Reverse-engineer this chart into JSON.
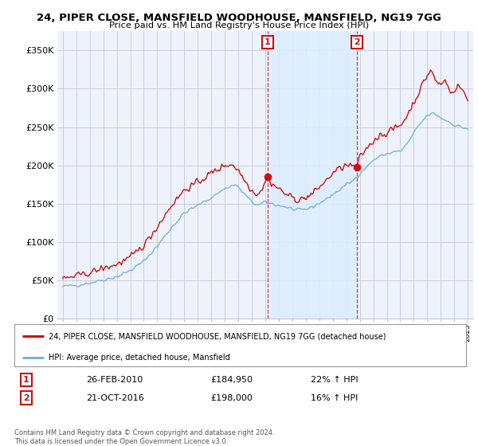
{
  "title": "24, PIPER CLOSE, MANSFIELD WOODHOUSE, MANSFIELD, NG19 7GG",
  "subtitle": "Price paid vs. HM Land Registry's House Price Index (HPI)",
  "legend_line1": "24, PIPER CLOSE, MANSFIELD WOODHOUSE, MANSFIELD, NG19 7GG (detached house)",
  "legend_line2": "HPI: Average price, detached house, Mansfield",
  "annotation1_date": "26-FEB-2010",
  "annotation1_price": "£184,950",
  "annotation1_hpi": "22% ↑ HPI",
  "annotation2_date": "21-OCT-2016",
  "annotation2_price": "£198,000",
  "annotation2_hpi": "16% ↑ HPI",
  "footer": "Contains HM Land Registry data © Crown copyright and database right 2024.\nThis data is licensed under the Open Government Licence v3.0.",
  "sale1_x": 2010.15,
  "sale1_y": 184950,
  "sale2_x": 2016.8,
  "sale2_y": 198000,
  "hpi_color": "#7ab4d8",
  "price_color": "#cc1111",
  "annotation_box_color": "#cc1111",
  "shade_color": "#ddeeff",
  "background_color": "#ffffff",
  "plot_bg_color": "#eef2fb",
  "grid_color": "#c8c8d8",
  "ylim_min": 0,
  "ylim_max": 375000,
  "xlim_min": 1994.6,
  "xlim_max": 2025.4,
  "yticks": [
    0,
    50000,
    100000,
    150000,
    200000,
    250000,
    300000,
    350000
  ],
  "ytick_labels": [
    "£0",
    "£50K",
    "£100K",
    "£150K",
    "£200K",
    "£250K",
    "£300K",
    "£350K"
  ]
}
